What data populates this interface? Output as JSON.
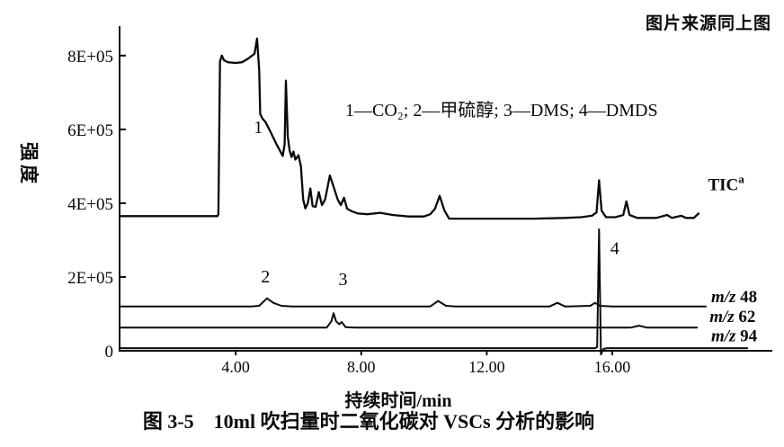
{
  "source_note": "图片来源同上图",
  "caption": "图 3-5　10ml 吹扫量时二氧化碳对 VSCs 分析的影响",
  "chart_data": {
    "type": "line",
    "title": "图 3-5　10ml 吹扫量时二氧化碳对 VSCs 分析的影响",
    "xlabel": "持续时间/min",
    "ylabel": "强度",
    "grid": false,
    "legend_position": "top-center-inside",
    "legend_items": [
      {
        "num": "1",
        "name": "CO₂"
      },
      {
        "num": "2",
        "name": "甲硫醇"
      },
      {
        "num": "3",
        "name": "DMS"
      },
      {
        "num": "4",
        "name": "DMDS"
      }
    ],
    "x_ticks": [
      {
        "value": 4,
        "label": "4.00"
      },
      {
        "value": 8,
        "label": "8.00"
      },
      {
        "value": 12,
        "label": "12.00"
      },
      {
        "value": 16,
        "label": "16.00"
      }
    ],
    "y_unit_multiplier": 100000,
    "y_ticks": [
      {
        "value": 8,
        "label": "8E+05"
      },
      {
        "value": 6,
        "label": "6E+05"
      },
      {
        "value": 4,
        "label": "4E+05"
      },
      {
        "value": 2,
        "label": "2E+05"
      },
      {
        "value": 0,
        "label": "0"
      }
    ],
    "xlim": [
      0.3,
      21.1
    ],
    "ylim": [
      0,
      8.8
    ],
    "peak_labels": [
      {
        "text": "1",
        "pos": [
          4.72,
          5.9
        ]
      },
      {
        "text": "2",
        "pos": [
          4.95,
          1.85
        ]
      },
      {
        "text": "3",
        "pos": [
          7.42,
          1.78
        ]
      },
      {
        "text": "4",
        "pos": [
          16.08,
          2.62
        ]
      }
    ],
    "series": [
      {
        "id": "tic",
        "label": "TIC",
        "label_sup": "a",
        "label_pos": [
          19.05,
          4.35
        ],
        "points": [
          [
            0.3,
            3.65
          ],
          [
            1.5,
            3.65
          ],
          [
            3.0,
            3.65
          ],
          [
            3.42,
            3.65
          ],
          [
            3.45,
            3.7
          ],
          [
            3.5,
            7.85
          ],
          [
            3.56,
            8.0
          ],
          [
            3.62,
            7.88
          ],
          [
            3.75,
            7.82
          ],
          [
            4.0,
            7.8
          ],
          [
            4.2,
            7.82
          ],
          [
            4.4,
            7.92
          ],
          [
            4.6,
            8.05
          ],
          [
            4.68,
            8.46
          ],
          [
            4.75,
            7.6
          ],
          [
            4.78,
            6.42
          ],
          [
            4.85,
            6.3
          ],
          [
            4.95,
            6.2
          ],
          [
            5.1,
            5.95
          ],
          [
            5.3,
            5.6
          ],
          [
            5.5,
            5.28
          ],
          [
            5.56,
            5.6
          ],
          [
            5.6,
            7.32
          ],
          [
            5.66,
            5.8
          ],
          [
            5.72,
            5.42
          ],
          [
            5.78,
            5.25
          ],
          [
            5.84,
            5.4
          ],
          [
            5.9,
            5.18
          ],
          [
            6.0,
            5.3
          ],
          [
            6.08,
            5.0
          ],
          [
            6.15,
            4.1
          ],
          [
            6.22,
            3.86
          ],
          [
            6.3,
            4.0
          ],
          [
            6.38,
            4.4
          ],
          [
            6.45,
            3.92
          ],
          [
            6.55,
            3.9
          ],
          [
            6.65,
            4.3
          ],
          [
            6.75,
            3.95
          ],
          [
            6.85,
            4.1
          ],
          [
            7.0,
            4.75
          ],
          [
            7.1,
            4.5
          ],
          [
            7.25,
            4.1
          ],
          [
            7.35,
            3.95
          ],
          [
            7.45,
            4.15
          ],
          [
            7.55,
            3.85
          ],
          [
            7.7,
            3.78
          ],
          [
            7.9,
            3.72
          ],
          [
            8.2,
            3.7
          ],
          [
            8.6,
            3.74
          ],
          [
            9.0,
            3.68
          ],
          [
            9.5,
            3.64
          ],
          [
            10.0,
            3.64
          ],
          [
            10.2,
            3.7
          ],
          [
            10.35,
            3.85
          ],
          [
            10.5,
            4.2
          ],
          [
            10.65,
            3.8
          ],
          [
            10.8,
            3.58
          ],
          [
            11.5,
            3.58
          ],
          [
            12.5,
            3.58
          ],
          [
            13.5,
            3.58
          ],
          [
            14.5,
            3.6
          ],
          [
            15.0,
            3.62
          ],
          [
            15.35,
            3.66
          ],
          [
            15.5,
            3.75
          ],
          [
            15.58,
            4.62
          ],
          [
            15.66,
            3.8
          ],
          [
            15.8,
            3.62
          ],
          [
            16.1,
            3.62
          ],
          [
            16.35,
            3.68
          ],
          [
            16.45,
            4.05
          ],
          [
            16.55,
            3.68
          ],
          [
            16.8,
            3.6
          ],
          [
            17.4,
            3.6
          ],
          [
            17.75,
            3.68
          ],
          [
            17.9,
            3.6
          ],
          [
            18.2,
            3.66
          ],
          [
            18.35,
            3.6
          ],
          [
            18.6,
            3.6
          ],
          [
            18.75,
            3.72
          ]
        ]
      },
      {
        "id": "mz48",
        "label_prefix": "m/z",
        "label_value": "48",
        "label_pos": [
          19.15,
          1.32
        ],
        "points": [
          [
            0.3,
            1.2
          ],
          [
            2.0,
            1.2
          ],
          [
            3.5,
            1.2
          ],
          [
            4.5,
            1.2
          ],
          [
            4.75,
            1.22
          ],
          [
            5.0,
            1.42
          ],
          [
            5.2,
            1.3
          ],
          [
            5.45,
            1.22
          ],
          [
            5.8,
            1.2
          ],
          [
            7.0,
            1.2
          ],
          [
            8.0,
            1.2
          ],
          [
            9.0,
            1.2
          ],
          [
            10.2,
            1.2
          ],
          [
            10.45,
            1.35
          ],
          [
            10.7,
            1.22
          ],
          [
            11.0,
            1.2
          ],
          [
            12.5,
            1.2
          ],
          [
            14.0,
            1.2
          ],
          [
            14.25,
            1.3
          ],
          [
            14.5,
            1.2
          ],
          [
            15.3,
            1.22
          ],
          [
            15.45,
            1.3
          ],
          [
            15.6,
            1.22
          ],
          [
            16.0,
            1.2
          ],
          [
            17.0,
            1.2
          ],
          [
            18.0,
            1.2
          ],
          [
            18.98,
            1.2
          ]
        ]
      },
      {
        "id": "mz62",
        "label_prefix": "m/z",
        "label_value": "62",
        "label_pos": [
          19.1,
          0.78
        ],
        "points": [
          [
            0.3,
            0.63
          ],
          [
            2.0,
            0.63
          ],
          [
            4.0,
            0.63
          ],
          [
            6.0,
            0.63
          ],
          [
            6.9,
            0.63
          ],
          [
            7.05,
            0.8
          ],
          [
            7.12,
            1.02
          ],
          [
            7.2,
            0.8
          ],
          [
            7.3,
            0.72
          ],
          [
            7.38,
            0.78
          ],
          [
            7.5,
            0.64
          ],
          [
            7.8,
            0.63
          ],
          [
            9.0,
            0.63
          ],
          [
            11.0,
            0.63
          ],
          [
            13.0,
            0.63
          ],
          [
            15.0,
            0.63
          ],
          [
            16.6,
            0.63
          ],
          [
            16.85,
            0.68
          ],
          [
            17.1,
            0.63
          ],
          [
            18.7,
            0.63
          ]
        ]
      },
      {
        "id": "mz94",
        "label_prefix": "m/z",
        "label_value": "94",
        "label_pos": [
          19.15,
          0.25
        ],
        "points": [
          [
            0.3,
            0.07
          ],
          [
            3.0,
            0.07
          ],
          [
            6.0,
            0.07
          ],
          [
            9.0,
            0.07
          ],
          [
            12.0,
            0.07
          ],
          [
            15.0,
            0.07
          ],
          [
            15.45,
            0.07
          ],
          [
            15.52,
            0.1
          ],
          [
            15.58,
            3.29
          ],
          [
            15.64,
            -0.1
          ],
          [
            15.72,
            0.05
          ],
          [
            15.85,
            0.07
          ],
          [
            17.0,
            0.07
          ],
          [
            18.0,
            0.07
          ],
          [
            19.0,
            0.07
          ],
          [
            20.3,
            0.07
          ]
        ]
      }
    ]
  }
}
